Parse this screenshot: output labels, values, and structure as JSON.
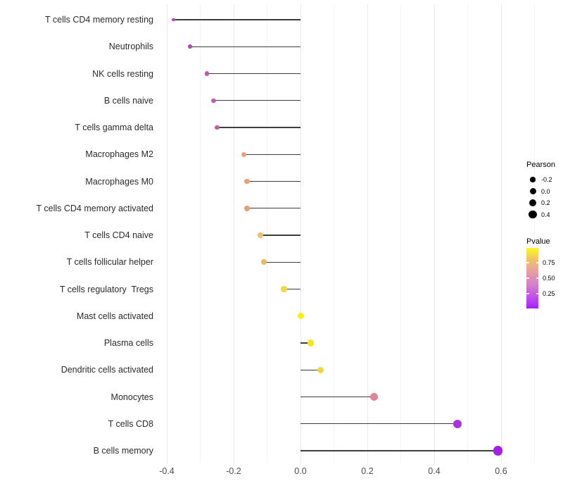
{
  "chart_data": {
    "type": "scatter",
    "variant": "lollipop",
    "orientation": "horizontal",
    "title": "",
    "xlabel": "",
    "ylabel": "",
    "xlim": [
      -0.51,
      0.72
    ],
    "x_ticks": [
      "-0.4",
      "-0.2",
      "0.0",
      "0.2",
      "0.4",
      "0.6"
    ],
    "x_tick_values": [
      -0.4,
      -0.2,
      0.0,
      0.2,
      0.4,
      0.6
    ],
    "x_minor_tick_values": [
      -0.3,
      -0.1,
      0.1,
      0.3,
      0.5,
      0.7
    ],
    "grid": "major+minor vertical, no axis lines, white background",
    "baseline_x": 0.0,
    "size_encoding": "Pearson correlation",
    "color_encoding": "Pvalue",
    "categories": [
      "T cells CD4 memory resting",
      "Neutrophils",
      "NK cells resting",
      "B cells naive",
      "T cells gamma delta",
      "Macrophages M2",
      "Macrophages M0",
      "T cells CD4 memory activated",
      "T cells CD4 naive",
      "T cells follicular helper",
      "T cells regulatory  Tregs",
      "Mast cells activated",
      "Plasma cells",
      "Dendritic cells activated",
      "Monocytes",
      "T cells CD8",
      "B cells memory"
    ],
    "series": [
      {
        "name": "Pearson",
        "values": [
          -0.38,
          -0.33,
          -0.28,
          -0.26,
          -0.25,
          -0.17,
          -0.16,
          -0.16,
          -0.12,
          -0.11,
          -0.05,
          0.0,
          0.03,
          0.06,
          0.22,
          0.47,
          0.59
        ]
      }
    ],
    "point_colors": [
      "#B344C6",
      "#B845BE",
      "#C455AF",
      "#C05BA8",
      "#C55FA3",
      "#EFA07E",
      "#EE9C75",
      "#ED9D78",
      "#F2BE62",
      "#F1B75C",
      "#F4D83E",
      "#FCF000",
      "#FAE512",
      "#F3D737",
      "#E08598",
      "#AC30DC",
      "#A51FEC"
    ],
    "legend_position": "right"
  },
  "legend_pearson": {
    "title": "Pearson",
    "items": [
      {
        "label": "-0.2",
        "value": -0.2
      },
      {
        "label": "0.0",
        "value": 0.0
      },
      {
        "label": "0.2",
        "value": 0.2
      },
      {
        "label": "0.4",
        "value": 0.4
      }
    ],
    "dot_color": "#000000"
  },
  "legend_pvalue": {
    "title": "Pvalue",
    "tick_labels": [
      "0.75",
      "0.50",
      "0.25"
    ],
    "gradient_top_to_bottom": [
      "#FCF921",
      "#F1C169",
      "#E59DA2",
      "#D77FC8",
      "#C253E8",
      "#A81FF6"
    ]
  }
}
